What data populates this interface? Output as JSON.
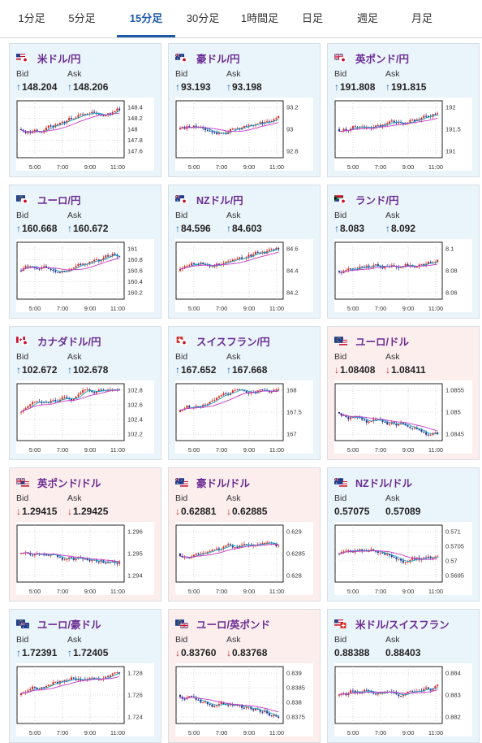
{
  "tabs": [
    {
      "label": "1分足",
      "active": false
    },
    {
      "label": "5分足",
      "active": false
    },
    {
      "label": "15分足",
      "active": true
    },
    {
      "label": "30分足",
      "active": false
    },
    {
      "label": "1時間足",
      "active": false
    },
    {
      "label": "日足",
      "active": false
    },
    {
      "label": "週足",
      "active": false
    },
    {
      "label": "月足",
      "active": false
    }
  ],
  "labels": {
    "bid": "Bid",
    "ask": "Ask"
  },
  "colors": {
    "up_bg": "#eaf4fb",
    "down_bg": "#fdeeee",
    "candle_up": "#d6281e",
    "candle_down": "#1f2f8c",
    "ma_short": "#16a3c4",
    "ma_long": "#c736c4",
    "pair_text": "#6a2c91"
  },
  "pairs": [
    {
      "name": "米ドル/円",
      "flags": [
        "flag-us-icon",
        "flag-jp-icon"
      ],
      "trend": "up",
      "bid": "148.204",
      "ask": "148.206",
      "bid_dir": "up",
      "ask_dir": "up",
      "y_ticks": [
        "148.4",
        "148.2",
        "148",
        "147.8",
        "147.6"
      ],
      "x_ticks": [
        "5:00",
        "7:00",
        "9:00",
        "11:00"
      ]
    },
    {
      "name": "豪ドル/円",
      "flags": [
        "flag-au-icon",
        "flag-jp-icon"
      ],
      "trend": "up",
      "bid": "93.193",
      "ask": "93.198",
      "bid_dir": "up",
      "ask_dir": "up",
      "y_ticks": [
        "93.2",
        "93",
        "92.8"
      ],
      "x_ticks": [
        "5:00",
        "7:00",
        "9:00",
        "11:00"
      ]
    },
    {
      "name": "英ポンド/円",
      "flags": [
        "flag-gb-icon",
        "flag-jp-icon"
      ],
      "trend": "up",
      "bid": "191.808",
      "ask": "191.815",
      "bid_dir": "up",
      "ask_dir": "up",
      "y_ticks": [
        "192",
        "191.5",
        "191"
      ],
      "x_ticks": [
        "5:00",
        "7:00",
        "9:00",
        "11:00"
      ]
    },
    {
      "name": "ユーロ/円",
      "flags": [
        "flag-eu-icon",
        "flag-jp-icon"
      ],
      "trend": "up",
      "bid": "160.668",
      "ask": "160.672",
      "bid_dir": "up",
      "ask_dir": "up",
      "y_ticks": [
        "161",
        "160.8",
        "160.6",
        "160.4",
        "160.2"
      ],
      "x_ticks": [
        "5:00",
        "7:00",
        "9:00",
        "11:00"
      ]
    },
    {
      "name": "NZドル/円",
      "flags": [
        "flag-nz-icon",
        "flag-jp-icon"
      ],
      "trend": "up",
      "bid": "84.596",
      "ask": "84.603",
      "bid_dir": "up",
      "ask_dir": "up",
      "y_ticks": [
        "84.6",
        "84.4",
        "84.2"
      ],
      "x_ticks": [
        "5:00",
        "7:00",
        "9:00",
        "11:00"
      ]
    },
    {
      "name": "ランド/円",
      "flags": [
        "flag-za-icon",
        "flag-jp-icon"
      ],
      "trend": "up",
      "bid": "8.083",
      "ask": "8.092",
      "bid_dir": "up",
      "ask_dir": "up",
      "y_ticks": [
        "8.1",
        "8.08",
        "8.06"
      ],
      "x_ticks": [
        "5:00",
        "7:00",
        "9:00",
        "11:00"
      ]
    },
    {
      "name": "カナダドル/円",
      "flags": [
        "flag-ca-icon",
        "flag-jp-icon"
      ],
      "trend": "up",
      "bid": "102.672",
      "ask": "102.678",
      "bid_dir": "up",
      "ask_dir": "up",
      "y_ticks": [
        "102.8",
        "102.6",
        "102.4",
        "102.2"
      ],
      "x_ticks": [
        "5:00",
        "7:00",
        "9:00",
        "11:00"
      ]
    },
    {
      "name": "スイスフラン/円",
      "flags": [
        "flag-ch-icon",
        "flag-jp-icon"
      ],
      "trend": "up",
      "bid": "167.652",
      "ask": "167.668",
      "bid_dir": "up",
      "ask_dir": "up",
      "y_ticks": [
        "168",
        "167.5",
        "167"
      ],
      "x_ticks": [
        "5:00",
        "7:00",
        "9:00",
        "11:00"
      ]
    },
    {
      "name": "ユーロ/ドル",
      "flags": [
        "flag-eu-icon",
        "flag-us-icon"
      ],
      "trend": "down",
      "bid": "1.08408",
      "ask": "1.08411",
      "bid_dir": "down",
      "ask_dir": "down",
      "y_ticks": [
        "1.0855",
        "1.085",
        "1.0845"
      ],
      "x_ticks": [
        "5:00",
        "7:00",
        "9:00",
        "11:00"
      ]
    },
    {
      "name": "英ポンド/ドル",
      "flags": [
        "flag-gb-icon",
        "flag-us-icon"
      ],
      "trend": "down",
      "bid": "1.29415",
      "ask": "1.29425",
      "bid_dir": "down",
      "ask_dir": "down",
      "y_ticks": [
        "1.296",
        "1.295",
        "1.294"
      ],
      "x_ticks": [
        "5:00",
        "7:00",
        "9:00",
        "11:00"
      ]
    },
    {
      "name": "豪ドル/ドル",
      "flags": [
        "flag-au-icon",
        "flag-us-icon"
      ],
      "trend": "down",
      "bid": "0.62881",
      "ask": "0.62885",
      "bid_dir": "down",
      "ask_dir": "down",
      "y_ticks": [
        "0.629",
        "0.6285",
        "0.628"
      ],
      "x_ticks": [
        "5:00",
        "7:00",
        "9:00",
        "11:00"
      ]
    },
    {
      "name": "NZドル/ドル",
      "flags": [
        "flag-nz-icon",
        "flag-us-icon"
      ],
      "trend": "neutral",
      "bid": "0.57075",
      "ask": "0.57089",
      "bid_dir": "",
      "ask_dir": "",
      "y_ticks": [
        "0.571",
        "0.5705",
        "0.57",
        "0.5695"
      ],
      "x_ticks": [
        "5:00",
        "7:00",
        "9:00",
        "11:00"
      ]
    },
    {
      "name": "ユーロ/豪ドル",
      "flags": [
        "flag-eu-icon",
        "flag-au-icon"
      ],
      "trend": "up",
      "bid": "1.72391",
      "ask": "1.72405",
      "bid_dir": "up",
      "ask_dir": "up",
      "y_ticks": [
        "1.728",
        "1.726",
        "1.724"
      ],
      "x_ticks": [
        "5:00",
        "7:00",
        "9:00",
        "11:00"
      ]
    },
    {
      "name": "ユーロ/英ポンド",
      "flags": [
        "flag-eu-icon",
        "flag-gb-icon"
      ],
      "trend": "down",
      "bid": "0.83760",
      "ask": "0.83768",
      "bid_dir": "down",
      "ask_dir": "down",
      "y_ticks": [
        "0.839",
        "0.8385",
        "0.838",
        "0.8375"
      ],
      "x_ticks": [
        "5:00",
        "7:00",
        "9:00",
        "11:00"
      ]
    },
    {
      "name": "米ドル/スイスフラン",
      "flags": [
        "flag-us-icon",
        "flag-ch-icon"
      ],
      "trend": "neutral",
      "bid": "0.88388",
      "ask": "0.88403",
      "bid_dir": "",
      "ask_dir": "",
      "y_ticks": [
        "0.884",
        "0.883",
        "0.882"
      ],
      "x_ticks": [
        "5:00",
        "7:00",
        "9:00",
        "11:00"
      ]
    }
  ]
}
